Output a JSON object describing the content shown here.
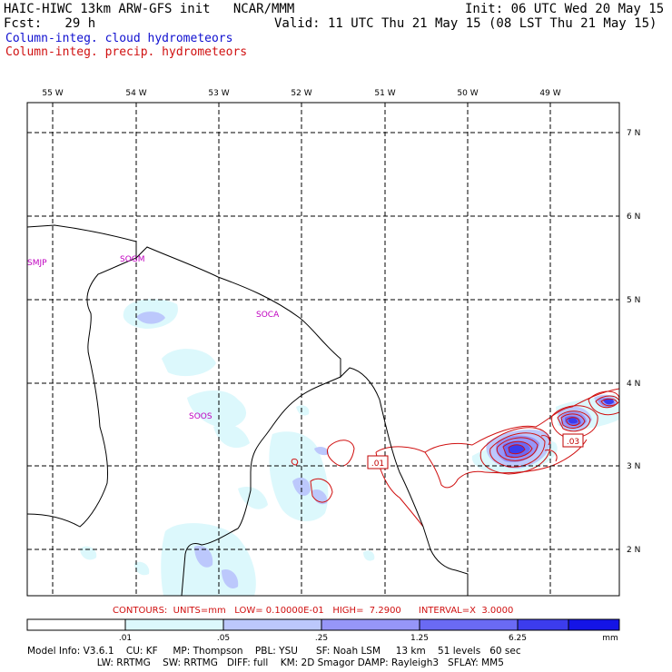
{
  "header": {
    "title_left": "HAIC-HIWC 13km ARW-GFS init   NCAR/MMM",
    "init": "Init: 06 UTC Wed 20 May 15",
    "fcst": "Fcst:   29 h",
    "valid": "Valid: 11 UTC Thu 21 May 15 (08 LST Thu 21 May 15)",
    "field1": "Column-integ. cloud hydrometeors",
    "field2": "Column-integ. precip. hydrometeors"
  },
  "map": {
    "lon_labels": [
      "55 W",
      "54 W",
      "53 W",
      "52 W",
      "51 W",
      "50 W",
      "49 W"
    ],
    "lat_labels": [
      "7 N",
      "6 N",
      "5 N",
      "4 N",
      "3 N",
      "2 N"
    ],
    "stations": [
      "SMJP",
      "SOGM",
      "SOCA",
      "SOOS"
    ],
    "contour_labels": [
      ".01",
      ".03"
    ]
  },
  "contour_info": "CONTOURS:  UNITS=mm   LOW= 0.10000E-01   HIGH=  7.2900      INTERVAL=X  3.0000",
  "colorbar": {
    "ticks": [
      ".01",
      ".05",
      ".25",
      "1.25",
      "6.25"
    ],
    "unit": "mm",
    "colors": [
      "#ffffff",
      "#dcf8fc",
      "#bcc8fc",
      "#9696f8",
      "#6a6af4",
      "#3c3ced",
      "#1414e6"
    ]
  },
  "model_info": {
    "line1": "Model Info: V3.6.1    CU: KF     MP: Thompson    PBL: YSU      SF: Noah LSM     13 km    51 levels   60 sec",
    "line2": "                       LW: RRTMG    SW: RRTMG   DIFF: full    KM: 2D Smagor DAMP: Rayleigh3   SFLAY: MM5"
  }
}
